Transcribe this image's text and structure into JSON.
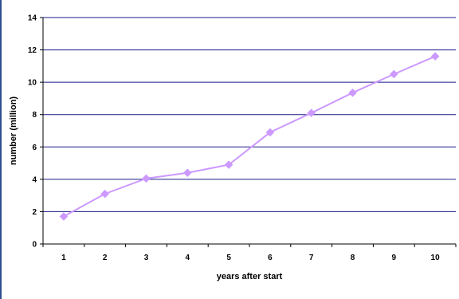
{
  "chart_data": {
    "type": "line",
    "title": "",
    "xlabel": "years after start",
    "ylabel": "number (million)",
    "x": [
      1,
      2,
      3,
      4,
      5,
      6,
      7,
      8,
      9,
      10
    ],
    "series": [
      {
        "values": [
          1.7,
          3.1,
          4.05,
          4.4,
          4.9,
          6.9,
          8.1,
          9.35,
          10.5,
          11.6
        ]
      }
    ],
    "ylim": [
      0,
      14
    ],
    "yticks": [
      0,
      2,
      4,
      6,
      8,
      10,
      12,
      14
    ],
    "xtick_labels": [
      "1",
      "2",
      "3",
      "4",
      "5",
      "6",
      "7",
      "8",
      "9",
      "10"
    ],
    "ytick_labels": [
      "0",
      "2",
      "4",
      "6",
      "8",
      "10",
      "12",
      "14"
    ],
    "grid": "horizontal",
    "legend": "none",
    "colors": {
      "line": "#cc99ff",
      "gridline": "#1a1a8c",
      "axis": "#000000"
    }
  }
}
